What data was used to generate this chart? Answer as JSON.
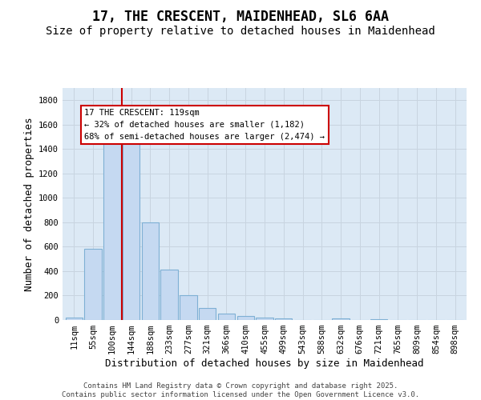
{
  "title_line1": "17, THE CRESCENT, MAIDENHEAD, SL6 6AA",
  "title_line2": "Size of property relative to detached houses in Maidenhead",
  "xlabel": "Distribution of detached houses by size in Maidenhead",
  "ylabel": "Number of detached properties",
  "categories": [
    "11sqm",
    "55sqm",
    "100sqm",
    "144sqm",
    "188sqm",
    "233sqm",
    "277sqm",
    "321sqm",
    "366sqm",
    "410sqm",
    "455sqm",
    "499sqm",
    "543sqm",
    "588sqm",
    "632sqm",
    "676sqm",
    "721sqm",
    "765sqm",
    "809sqm",
    "854sqm",
    "898sqm"
  ],
  "values": [
    20,
    580,
    1470,
    1470,
    800,
    410,
    200,
    100,
    50,
    30,
    20,
    10,
    0,
    0,
    10,
    0,
    5,
    0,
    0,
    0,
    0
  ],
  "bar_color": "#c5d9f1",
  "bar_edge_color": "#7eb0d4",
  "grid_color": "#c8d4e0",
  "background_color": "#dce9f5",
  "vline_color": "#cc0000",
  "annotation_text": "17 THE CRESCENT: 119sqm\n← 32% of detached houses are smaller (1,182)\n68% of semi-detached houses are larger (2,474) →",
  "annotation_box_color": "#ffffff",
  "annotation_box_edge": "#cc0000",
  "ylim": [
    0,
    1900
  ],
  "yticks": [
    0,
    200,
    400,
    600,
    800,
    1000,
    1200,
    1400,
    1600,
    1800
  ],
  "footer": "Contains HM Land Registry data © Crown copyright and database right 2025.\nContains public sector information licensed under the Open Government Licence v3.0.",
  "title_fontsize": 12,
  "subtitle_fontsize": 10,
  "axis_label_fontsize": 9,
  "tick_fontsize": 7.5,
  "footer_fontsize": 6.5
}
